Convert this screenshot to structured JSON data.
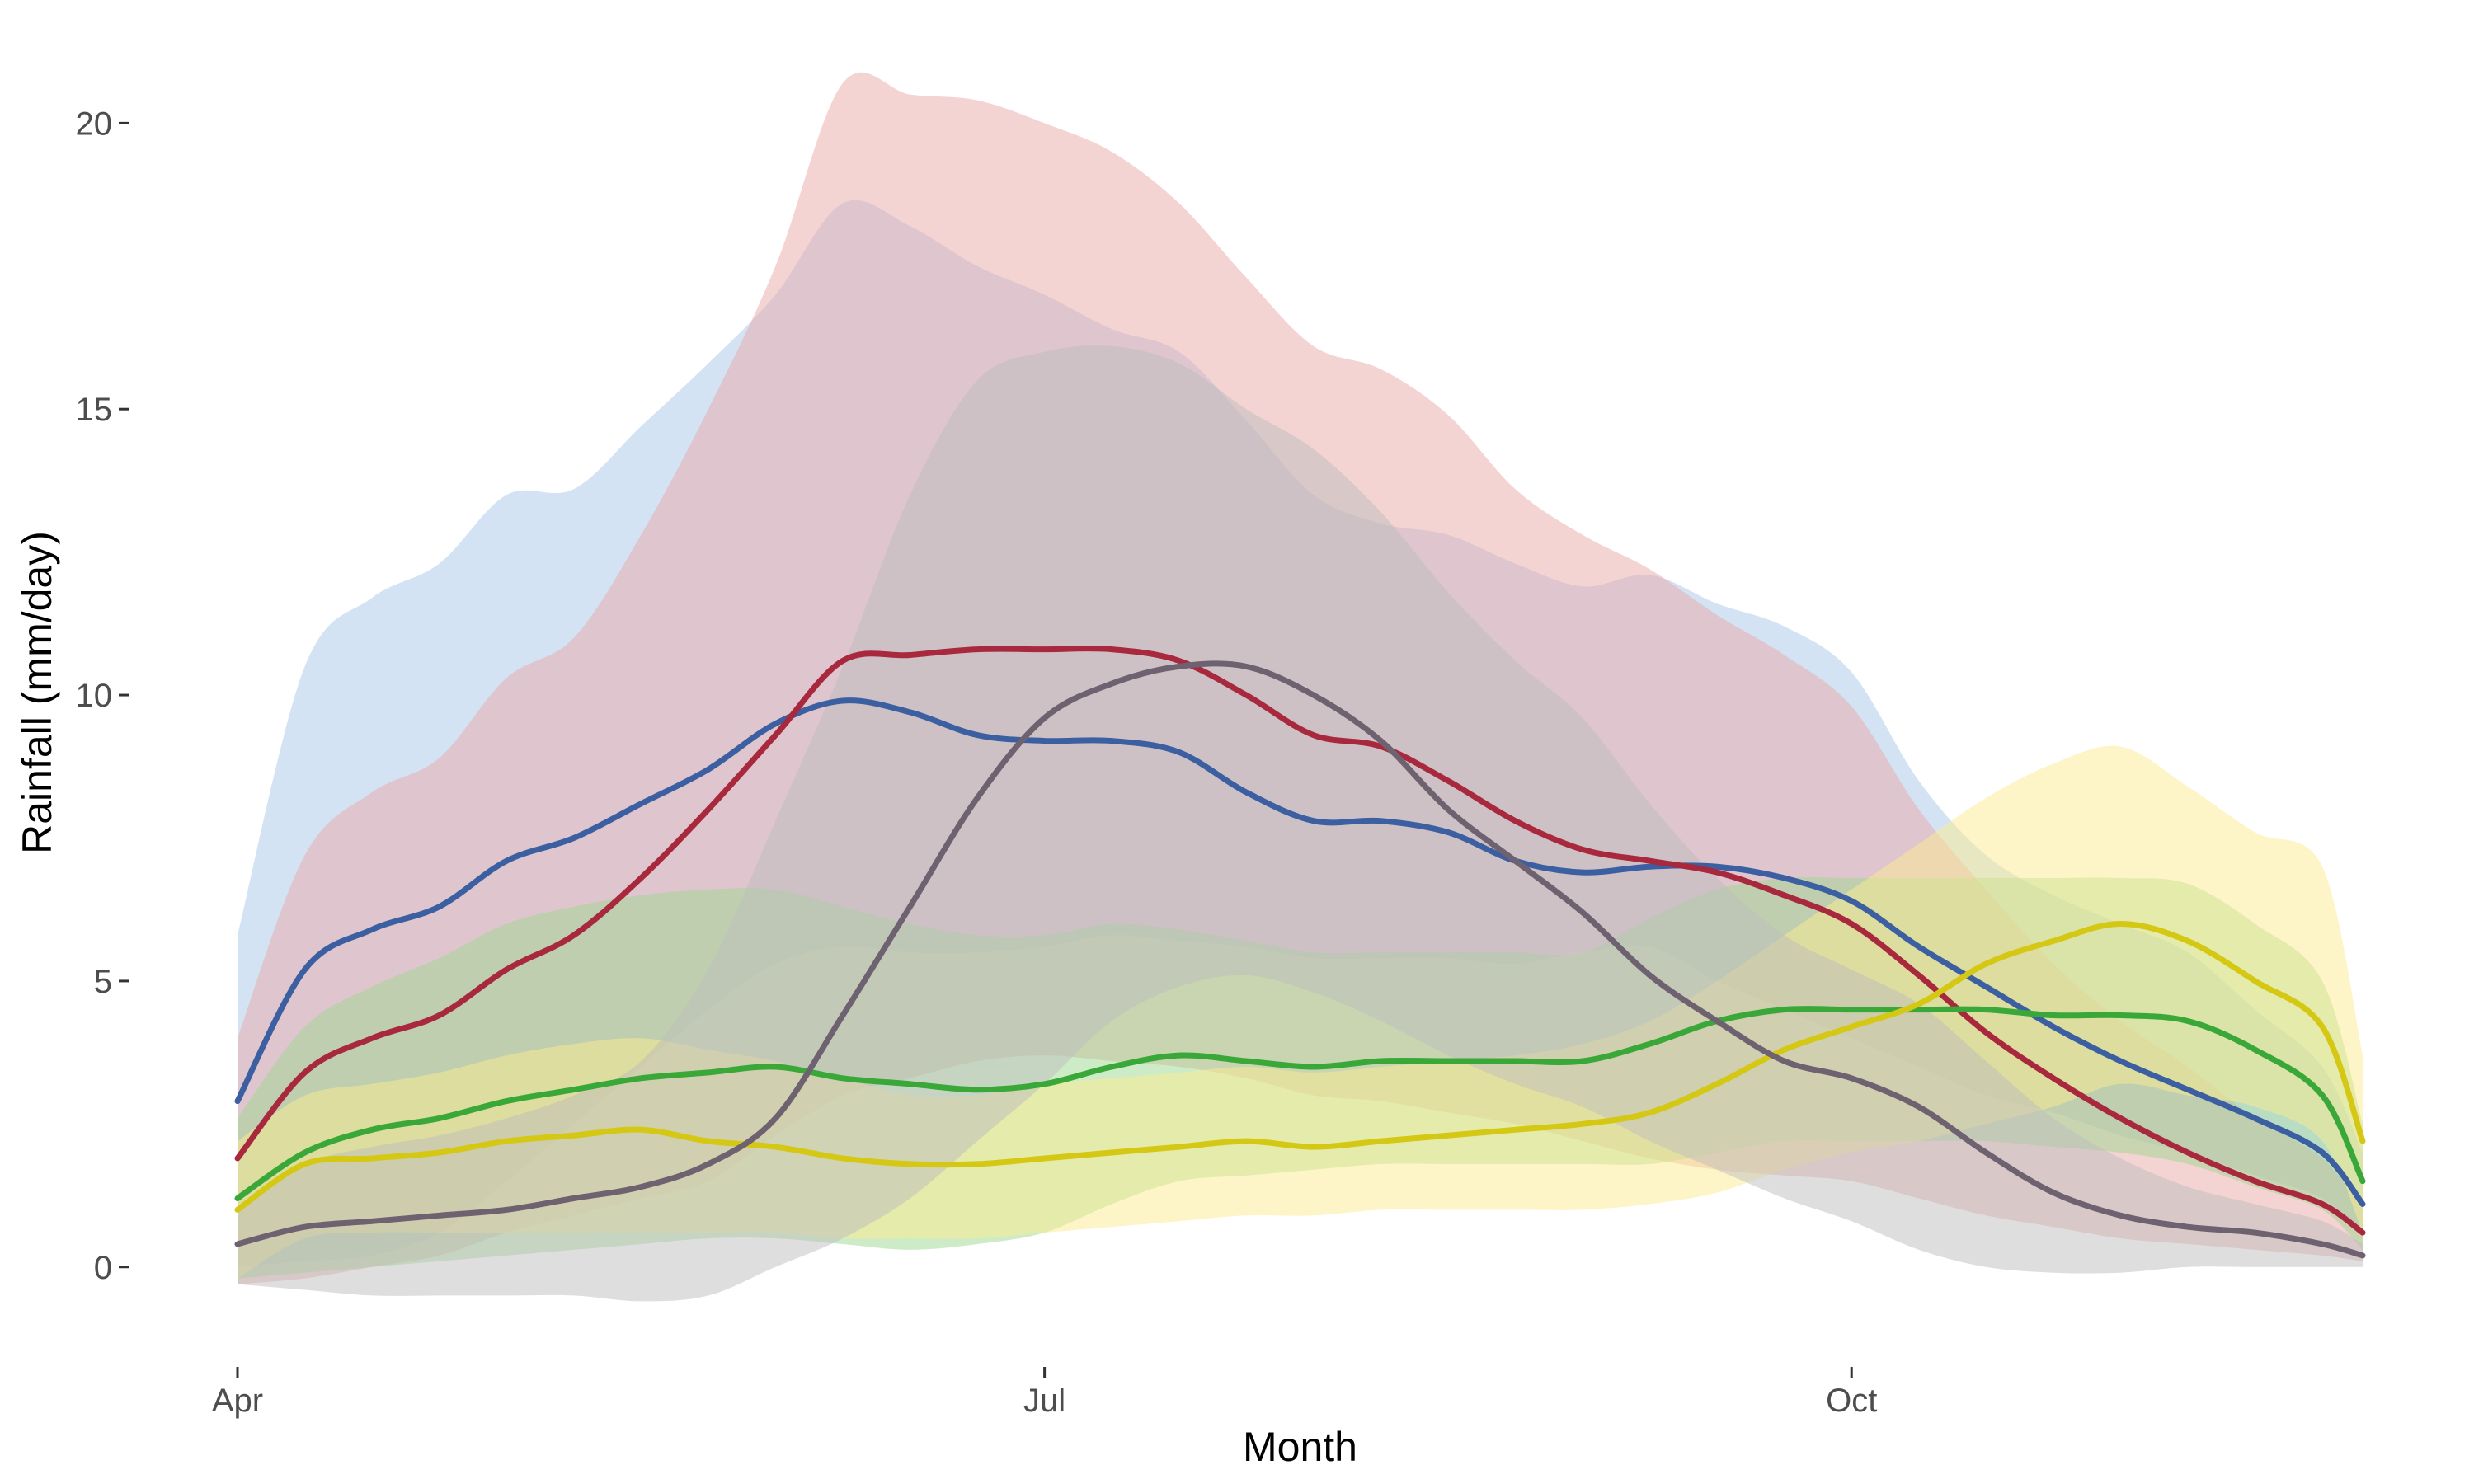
{
  "chart_data": {
    "type": "area",
    "title": "",
    "xlabel": "Month",
    "ylabel": "Rainfall (mm/day)",
    "x_unit": "month index from Apr 1 (0 = Apr 1, 3 = Jul 1, 6 = Oct 1)",
    "xlim": [
      0,
      7.9
    ],
    "ylim": [
      -1.2,
      21
    ],
    "x_ticks": [
      {
        "value": 0,
        "label": "Apr"
      },
      {
        "value": 3,
        "label": "Jul"
      },
      {
        "value": 6,
        "label": "Oct"
      }
    ],
    "y_ticks": [
      {
        "value": 0,
        "label": "0"
      },
      {
        "value": 5,
        "label": "5"
      },
      {
        "value": 10,
        "label": "10"
      },
      {
        "value": 15,
        "label": "15"
      },
      {
        "value": 20,
        "label": "20"
      }
    ],
    "grid": false,
    "legend": "none",
    "x": [
      0,
      0.25,
      0.5,
      0.75,
      1,
      1.25,
      1.5,
      1.75,
      2,
      2.25,
      2.5,
      2.75,
      3,
      3.25,
      3.5,
      3.75,
      4,
      4.25,
      4.5,
      4.75,
      5,
      5.25,
      5.5,
      5.75,
      6,
      6.25,
      6.5,
      6.75,
      7,
      7.25,
      7.5,
      7.75,
      7.9
    ],
    "series": [
      {
        "color": "#3b5fa0",
        "band_color": "#a8c8ea",
        "values": [
          2.9,
          5.2,
          5.9,
          6.3,
          7.1,
          7.5,
          8.1,
          8.7,
          9.5,
          9.9,
          9.7,
          9.3,
          9.2,
          9.2,
          9.0,
          8.3,
          7.8,
          7.8,
          7.6,
          7.1,
          6.9,
          7.0,
          7.0,
          6.8,
          6.4,
          5.6,
          4.9,
          4.2,
          3.6,
          3.1,
          2.6,
          2.0,
          1.1
        ],
        "lower": [
          0.0,
          0.1,
          0.2,
          0.6,
          1.5,
          2.5,
          3.5,
          4.5,
          5.3,
          5.6,
          5.5,
          5.5,
          5.6,
          5.8,
          5.7,
          5.6,
          5.4,
          5.4,
          5.4,
          5.3,
          5.5,
          5.6,
          5.0,
          4.5,
          4.0,
          3.5,
          3.0,
          2.7,
          2.3,
          2.0,
          1.6,
          1.2,
          0.6
        ],
        "upper": [
          5.8,
          10.5,
          11.7,
          12.3,
          13.5,
          13.6,
          14.7,
          15.8,
          17.0,
          18.6,
          18.2,
          17.5,
          17.0,
          16.4,
          16.0,
          14.8,
          13.5,
          13.0,
          12.8,
          12.3,
          11.9,
          12.1,
          11.6,
          11.2,
          10.4,
          8.5,
          7.2,
          6.5,
          6.0,
          5.5,
          4.5,
          3.5,
          2.0
        ]
      },
      {
        "color": "#a8293e",
        "band_color": "#eaa8a8",
        "values": [
          1.9,
          3.4,
          4.0,
          4.4,
          5.2,
          5.8,
          6.8,
          8.0,
          9.3,
          10.6,
          10.7,
          10.8,
          10.8,
          10.8,
          10.6,
          10.0,
          9.3,
          9.1,
          8.5,
          7.8,
          7.3,
          7.1,
          6.9,
          6.5,
          6.0,
          5.1,
          4.1,
          3.3,
          2.6,
          2.0,
          1.5,
          1.1,
          0.6
        ],
        "lower": [
          -0.3,
          -0.2,
          0.0,
          0.2,
          0.6,
          0.9,
          1.2,
          1.5,
          2.3,
          3.0,
          3.3,
          3.6,
          3.7,
          3.6,
          3.5,
          3.3,
          3.0,
          2.9,
          2.7,
          2.5,
          2.2,
          1.9,
          1.7,
          1.6,
          1.5,
          1.2,
          0.9,
          0.7,
          0.5,
          0.4,
          0.3,
          0.2,
          0.1
        ],
        "upper": [
          4.0,
          7.2,
          8.3,
          8.9,
          10.3,
          11.0,
          12.8,
          15.0,
          17.5,
          20.7,
          20.5,
          20.4,
          20.0,
          19.5,
          18.6,
          17.3,
          16.1,
          15.7,
          14.9,
          13.6,
          12.8,
          12.2,
          11.4,
          10.7,
          9.8,
          8.0,
          6.6,
          5.3,
          4.3,
          3.5,
          2.6,
          1.9,
          1.0
        ]
      },
      {
        "color": "#3aa838",
        "band_color": "#9ed88f",
        "values": [
          1.2,
          2.0,
          2.4,
          2.6,
          2.9,
          3.1,
          3.3,
          3.4,
          3.5,
          3.3,
          3.2,
          3.1,
          3.2,
          3.5,
          3.7,
          3.6,
          3.5,
          3.6,
          3.6,
          3.6,
          3.6,
          3.9,
          4.3,
          4.5,
          4.5,
          4.5,
          4.5,
          4.4,
          4.4,
          4.3,
          3.8,
          3.0,
          1.5
        ],
        "lower": [
          -0.2,
          -0.1,
          0.0,
          0.1,
          0.2,
          0.3,
          0.4,
          0.5,
          0.5,
          0.4,
          0.3,
          0.4,
          0.6,
          1.1,
          1.5,
          1.6,
          1.7,
          1.8,
          1.8,
          1.8,
          1.8,
          1.8,
          2.0,
          2.2,
          2.2,
          2.2,
          2.2,
          2.1,
          2.0,
          1.8,
          1.4,
          1.0,
          0.3
        ],
        "upper": [
          2.6,
          4.2,
          4.9,
          5.4,
          6.0,
          6.3,
          6.5,
          6.6,
          6.6,
          6.3,
          6.0,
          5.8,
          5.8,
          6.0,
          5.9,
          5.7,
          5.5,
          5.5,
          5.5,
          5.5,
          5.5,
          6.1,
          6.6,
          6.8,
          6.8,
          6.8,
          6.8,
          6.8,
          6.8,
          6.7,
          6.0,
          5.0,
          2.5
        ]
      },
      {
        "color": "#d4c815",
        "band_color": "#fbec8f",
        "values": [
          1.0,
          1.8,
          1.9,
          2.0,
          2.2,
          2.3,
          2.4,
          2.2,
          2.1,
          1.9,
          1.8,
          1.8,
          1.9,
          2.0,
          2.1,
          2.2,
          2.1,
          2.2,
          2.3,
          2.4,
          2.5,
          2.7,
          3.2,
          3.8,
          4.2,
          4.6,
          5.3,
          5.7,
          6.0,
          5.7,
          5.0,
          4.2,
          2.2
        ],
        "lower": [
          -0.2,
          0.5,
          0.6,
          0.6,
          0.6,
          0.6,
          0.6,
          0.6,
          0.6,
          0.5,
          0.5,
          0.5,
          0.6,
          0.7,
          0.8,
          0.9,
          0.9,
          1.0,
          1.0,
          1.0,
          1.0,
          1.1,
          1.3,
          1.7,
          2.0,
          2.2,
          2.5,
          2.8,
          3.2,
          3.0,
          2.8,
          2.2,
          0.6
        ],
        "upper": [
          2.2,
          3.0,
          3.2,
          3.4,
          3.7,
          3.9,
          4.0,
          3.8,
          3.6,
          3.3,
          3.0,
          3.0,
          3.2,
          3.3,
          3.4,
          3.5,
          3.4,
          3.5,
          3.6,
          3.7,
          3.9,
          4.3,
          5.0,
          5.8,
          6.6,
          7.4,
          8.2,
          8.8,
          9.1,
          8.4,
          7.6,
          7.0,
          3.7
        ]
      },
      {
        "color": "#6e6270",
        "band_color": "#bdbdbd",
        "values": [
          0.4,
          0.7,
          0.8,
          0.9,
          1.0,
          1.2,
          1.4,
          1.8,
          2.6,
          4.4,
          6.3,
          8.2,
          9.6,
          10.2,
          10.5,
          10.5,
          10.0,
          9.2,
          8.0,
          7.1,
          6.2,
          5.1,
          4.3,
          3.6,
          3.3,
          2.8,
          2.0,
          1.3,
          0.9,
          0.7,
          0.6,
          0.4,
          0.2
        ],
        "lower": [
          -0.3,
          -0.4,
          -0.5,
          -0.5,
          -0.5,
          -0.5,
          -0.6,
          -0.5,
          0.0,
          0.5,
          1.2,
          2.2,
          3.2,
          4.3,
          4.9,
          5.1,
          4.8,
          4.3,
          3.7,
          3.2,
          2.8,
          2.2,
          1.7,
          1.2,
          0.8,
          0.3,
          0.0,
          -0.1,
          -0.1,
          0.0,
          0.0,
          0.0,
          0.0
        ],
        "upper": [
          1.0,
          1.8,
          2.1,
          2.3,
          2.6,
          3.0,
          3.6,
          5.2,
          7.8,
          10.5,
          13.5,
          15.5,
          16.0,
          16.1,
          15.8,
          15.0,
          14.3,
          13.2,
          11.8,
          10.6,
          9.6,
          8.1,
          6.8,
          5.8,
          5.2,
          4.6,
          3.6,
          2.6,
          1.9,
          1.4,
          1.1,
          0.8,
          0.4
        ]
      }
    ]
  }
}
